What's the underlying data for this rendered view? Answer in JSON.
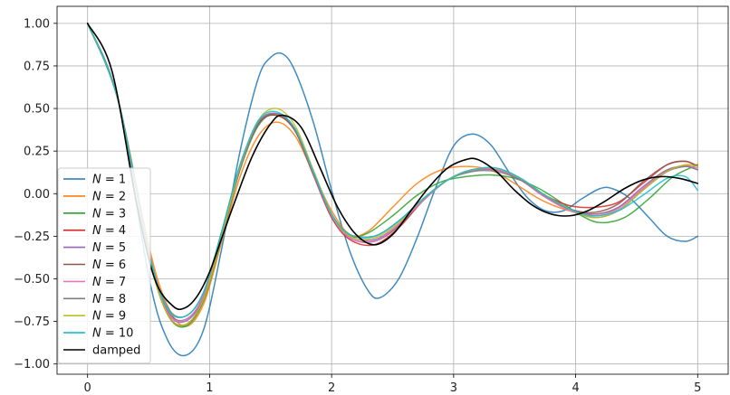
{
  "chart_data": {
    "type": "line",
    "title": "",
    "xlabel": "",
    "ylabel": "",
    "xlim": [
      -0.25,
      5.25
    ],
    "ylim": [
      -1.06,
      1.1
    ],
    "grid": true,
    "legend_placement": "lower-left",
    "x_ticks": [
      0,
      1,
      2,
      3,
      4,
      5
    ],
    "x_tick_labels": [
      "0",
      "1",
      "2",
      "3",
      "4",
      "5"
    ],
    "y_ticks": [
      -1.0,
      -0.75,
      -0.5,
      -0.25,
      0.0,
      0.25,
      0.5,
      0.75,
      1.0
    ],
    "y_tick_labels": [
      "−1.00",
      "−0.75",
      "−0.50",
      "−0.25",
      "0.00",
      "0.25",
      "0.50",
      "0.75",
      "1.00"
    ],
    "series": [
      {
        "name": "N = 1",
        "name_var": "N",
        "name_op": " = ",
        "name_num": "1",
        "color": "#1f77b4",
        "x": [
          0,
          0.25,
          0.5,
          0.65,
          0.8,
          0.95,
          1.1,
          1.25,
          1.4,
          1.5,
          1.6,
          1.7,
          1.85,
          2.0,
          2.15,
          2.3,
          2.4,
          2.55,
          2.7,
          2.85,
          3.0,
          3.15,
          3.3,
          3.45,
          3.6,
          3.75,
          3.9,
          4.05,
          4.2,
          4.3,
          4.45,
          4.6,
          4.75,
          4.9,
          5.0
        ],
        "y": [
          1.0,
          0.55,
          -0.48,
          -0.85,
          -0.95,
          -0.8,
          -0.32,
          0.25,
          0.68,
          0.8,
          0.82,
          0.72,
          0.42,
          0.02,
          -0.34,
          -0.57,
          -0.61,
          -0.5,
          -0.26,
          0.03,
          0.28,
          0.35,
          0.29,
          0.13,
          -0.02,
          -0.1,
          -0.1,
          -0.03,
          0.03,
          0.03,
          -0.03,
          -0.14,
          -0.25,
          -0.28,
          -0.25
        ]
      },
      {
        "name": "N = 2",
        "name_var": "N",
        "name_op": " = ",
        "name_num": "2",
        "color": "#ff7f0e",
        "x": [
          0,
          0.25,
          0.5,
          0.65,
          0.8,
          0.95,
          1.1,
          1.25,
          1.4,
          1.55,
          1.7,
          1.85,
          2.0,
          2.15,
          2.3,
          2.5,
          2.7,
          2.9,
          3.1,
          3.3,
          3.5,
          3.7,
          3.9,
          4.1,
          4.3,
          4.5,
          4.7,
          4.85,
          5.0
        ],
        "y": [
          1.0,
          0.55,
          -0.3,
          -0.65,
          -0.78,
          -0.65,
          -0.28,
          0.1,
          0.34,
          0.42,
          0.34,
          0.12,
          -0.1,
          -0.24,
          -0.22,
          -0.08,
          0.06,
          0.14,
          0.16,
          0.14,
          0.06,
          -0.03,
          -0.09,
          -0.12,
          -0.1,
          0.0,
          0.12,
          0.16,
          0.17
        ]
      },
      {
        "name": "N = 3",
        "name_var": "N",
        "name_op": " = ",
        "name_num": "3",
        "color": "#2ca02c",
        "x": [
          0,
          0.25,
          0.5,
          0.65,
          0.8,
          0.95,
          1.1,
          1.25,
          1.4,
          1.55,
          1.7,
          1.85,
          2.0,
          2.15,
          2.3,
          2.5,
          2.7,
          2.9,
          3.1,
          3.3,
          3.5,
          3.7,
          3.9,
          4.05,
          4.2,
          4.4,
          4.6,
          4.8,
          5.0
        ],
        "y": [
          1.0,
          0.55,
          -0.34,
          -0.7,
          -0.78,
          -0.63,
          -0.26,
          0.14,
          0.4,
          0.47,
          0.38,
          0.12,
          -0.14,
          -0.25,
          -0.23,
          -0.13,
          -0.01,
          0.07,
          0.1,
          0.11,
          0.09,
          0.03,
          -0.06,
          -0.13,
          -0.17,
          -0.14,
          -0.03,
          0.1,
          0.17
        ]
      },
      {
        "name": "N = 4",
        "name_var": "N",
        "name_op": " = ",
        "name_num": "4",
        "color": "#d62728",
        "x": [
          0,
          0.25,
          0.5,
          0.65,
          0.8,
          0.95,
          1.1,
          1.25,
          1.4,
          1.55,
          1.7,
          1.85,
          2.0,
          2.15,
          2.35,
          2.55,
          2.75,
          2.95,
          3.15,
          3.35,
          3.55,
          3.75,
          3.95,
          4.15,
          4.35,
          4.55,
          4.75,
          4.9,
          5.0
        ],
        "y": [
          1.0,
          0.55,
          -0.35,
          -0.7,
          -0.77,
          -0.62,
          -0.25,
          0.15,
          0.41,
          0.46,
          0.37,
          0.11,
          -0.14,
          -0.27,
          -0.3,
          -0.2,
          -0.04,
          0.08,
          0.14,
          0.14,
          0.08,
          -0.01,
          -0.07,
          -0.08,
          -0.05,
          0.06,
          0.17,
          0.19,
          0.16
        ]
      },
      {
        "name": "N = 5",
        "name_var": "N",
        "name_op": " = ",
        "name_num": "5",
        "color": "#9467bd",
        "x": [
          0,
          0.25,
          0.5,
          0.65,
          0.8,
          0.95,
          1.1,
          1.25,
          1.4,
          1.55,
          1.7,
          1.85,
          2.0,
          2.15,
          2.35,
          2.55,
          2.75,
          2.95,
          3.15,
          3.35,
          3.55,
          3.75,
          3.95,
          4.15,
          4.35,
          4.55,
          4.75,
          4.9,
          5.0
        ],
        "y": [
          1.0,
          0.55,
          -0.35,
          -0.69,
          -0.75,
          -0.61,
          -0.25,
          0.15,
          0.41,
          0.47,
          0.38,
          0.12,
          -0.13,
          -0.25,
          -0.27,
          -0.18,
          -0.04,
          0.08,
          0.13,
          0.14,
          0.08,
          -0.02,
          -0.09,
          -0.12,
          -0.08,
          0.04,
          0.14,
          0.16,
          0.14
        ]
      },
      {
        "name": "N = 6",
        "name_var": "N",
        "name_op": " = ",
        "name_num": "6",
        "color": "#8c564b",
        "x": [
          0,
          0.25,
          0.5,
          0.65,
          0.8,
          0.95,
          1.1,
          1.25,
          1.4,
          1.55,
          1.7,
          1.85,
          2.0,
          2.15,
          2.35,
          2.55,
          2.75,
          2.95,
          3.15,
          3.35,
          3.55,
          3.75,
          3.95,
          4.15,
          4.35,
          4.55,
          4.75,
          4.9,
          5.0
        ],
        "y": [
          1.0,
          0.55,
          -0.34,
          -0.68,
          -0.74,
          -0.6,
          -0.24,
          0.16,
          0.41,
          0.46,
          0.37,
          0.12,
          -0.13,
          -0.26,
          -0.28,
          -0.19,
          -0.04,
          0.08,
          0.14,
          0.14,
          0.08,
          -0.02,
          -0.09,
          -0.11,
          -0.06,
          0.07,
          0.17,
          0.19,
          0.16
        ]
      },
      {
        "name": "N = 7",
        "name_var": "N",
        "name_op": " = ",
        "name_num": "7",
        "color": "#e377c2",
        "x": [
          0,
          0.25,
          0.5,
          0.65,
          0.8,
          0.95,
          1.1,
          1.25,
          1.4,
          1.55,
          1.7,
          1.85,
          2.0,
          2.15,
          2.35,
          2.55,
          2.75,
          2.95,
          3.15,
          3.35,
          3.55,
          3.75,
          3.95,
          4.15,
          4.35,
          4.55,
          4.75,
          4.9,
          5.0
        ],
        "y": [
          1.0,
          0.55,
          -0.35,
          -0.69,
          -0.74,
          -0.6,
          -0.24,
          0.16,
          0.42,
          0.47,
          0.38,
          0.12,
          -0.13,
          -0.26,
          -0.28,
          -0.18,
          -0.04,
          0.08,
          0.14,
          0.14,
          0.08,
          -0.02,
          -0.1,
          -0.13,
          -0.09,
          0.03,
          0.13,
          0.16,
          0.15
        ]
      },
      {
        "name": "N = 8",
        "name_var": "N",
        "name_op": " = ",
        "name_num": "8",
        "color": "#7f7f7f",
        "x": [
          0,
          0.25,
          0.5,
          0.65,
          0.8,
          0.95,
          1.1,
          1.25,
          1.4,
          1.55,
          1.7,
          1.85,
          2.0,
          2.15,
          2.35,
          2.55,
          2.75,
          2.95,
          3.15,
          3.35,
          3.55,
          3.75,
          3.95,
          4.15,
          4.35,
          4.55,
          4.75,
          4.9,
          5.0
        ],
        "y": [
          1.0,
          0.55,
          -0.33,
          -0.66,
          -0.72,
          -0.58,
          -0.22,
          0.17,
          0.42,
          0.47,
          0.38,
          0.12,
          -0.12,
          -0.24,
          -0.25,
          -0.16,
          -0.03,
          0.08,
          0.13,
          0.13,
          0.08,
          -0.01,
          -0.09,
          -0.14,
          -0.1,
          0.02,
          0.13,
          0.16,
          0.14
        ]
      },
      {
        "name": "N = 9",
        "name_var": "N",
        "name_op": " = ",
        "name_num": "9",
        "color": "#bcbd22",
        "x": [
          0,
          0.25,
          0.5,
          0.65,
          0.8,
          0.95,
          1.1,
          1.25,
          1.4,
          1.55,
          1.7,
          1.85,
          2.0,
          2.15,
          2.35,
          2.55,
          2.75,
          2.95,
          3.15,
          3.35,
          3.55,
          3.75,
          3.95,
          4.15,
          4.35,
          4.55,
          4.75,
          4.9,
          5.0
        ],
        "y": [
          1.0,
          0.55,
          -0.35,
          -0.7,
          -0.77,
          -0.62,
          -0.25,
          0.16,
          0.43,
          0.5,
          0.4,
          0.14,
          -0.12,
          -0.25,
          -0.26,
          -0.17,
          -0.03,
          0.08,
          0.14,
          0.15,
          0.09,
          -0.01,
          -0.09,
          -0.14,
          -0.1,
          0.02,
          0.13,
          0.17,
          0.16
        ]
      },
      {
        "name": "N = 10",
        "name_var": "N",
        "name_op": " = ",
        "name_num": "10",
        "color": "#17becf",
        "x": [
          0,
          0.25,
          0.5,
          0.65,
          0.8,
          0.95,
          1.1,
          1.25,
          1.4,
          1.55,
          1.7,
          1.85,
          2.0,
          2.15,
          2.35,
          2.55,
          2.75,
          2.95,
          3.15,
          3.35,
          3.55,
          3.75,
          3.95,
          4.15,
          4.35,
          4.55,
          4.75,
          4.9,
          5.0
        ],
        "y": [
          1.0,
          0.55,
          -0.34,
          -0.67,
          -0.72,
          -0.58,
          -0.22,
          0.17,
          0.43,
          0.48,
          0.38,
          0.13,
          -0.12,
          -0.24,
          -0.25,
          -0.16,
          -0.03,
          0.08,
          0.14,
          0.15,
          0.09,
          -0.01,
          -0.09,
          -0.13,
          -0.1,
          -0.01,
          0.09,
          0.1,
          0.02
        ]
      },
      {
        "name": "damped",
        "color": "#000000",
        "x": [
          0,
          0.2,
          0.4,
          0.55,
          0.7,
          0.8,
          0.9,
          1.0,
          1.1,
          1.2,
          1.35,
          1.5,
          1.6,
          1.75,
          1.9,
          2.05,
          2.2,
          2.35,
          2.5,
          2.65,
          2.8,
          2.95,
          3.1,
          3.2,
          3.35,
          3.5,
          3.65,
          3.8,
          3.95,
          4.1,
          4.25,
          4.4,
          4.55,
          4.7,
          4.85,
          5.0
        ],
        "y": [
          1.0,
          0.72,
          -0.05,
          -0.5,
          -0.66,
          -0.67,
          -0.6,
          -0.46,
          -0.26,
          -0.06,
          0.22,
          0.41,
          0.46,
          0.39,
          0.16,
          -0.08,
          -0.24,
          -0.3,
          -0.24,
          -0.1,
          0.04,
          0.15,
          0.2,
          0.2,
          0.13,
          0.02,
          -0.07,
          -0.12,
          -0.13,
          -0.1,
          -0.04,
          0.03,
          0.08,
          0.1,
          0.09,
          0.06
        ]
      }
    ]
  }
}
